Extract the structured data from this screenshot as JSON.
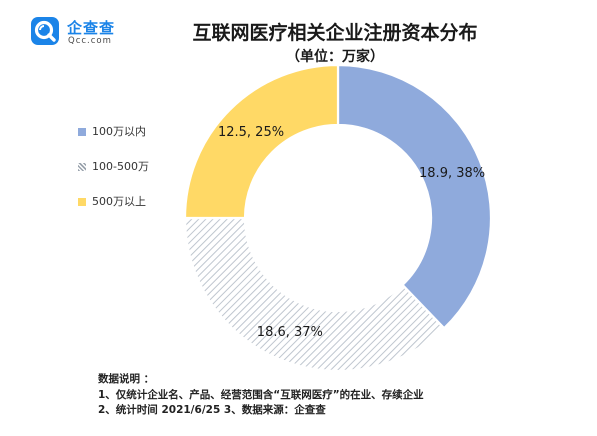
{
  "logo": {
    "name": "企查查",
    "domain": "Qcc.com"
  },
  "chart_data": {
    "type": "pie",
    "title": "互联网医疗相关企业注册资本分布",
    "subtitle": "（单位：万家）",
    "categories": [
      "100万以内",
      "100-500万",
      "500万以上"
    ],
    "values": [
      18.9,
      18.6,
      12.5
    ],
    "percents": [
      38,
      37,
      25
    ],
    "data_labels": [
      "18.9, 38%",
      "18.6, 37%",
      "12.5, 25%"
    ],
    "colors": [
      "#8faadc",
      "#d6dce4",
      "#ffd966"
    ],
    "patterns": [
      "solid",
      "diagonal-hatch",
      "solid"
    ],
    "hole": true,
    "legend_position": "left"
  },
  "notes": {
    "heading": "数据说明 ：",
    "lines": [
      "1、仅统计企业名、产品、经营范围含“互联网医疗”的在业、存续企业",
      "2、统计时间  2021/6/25     3、数据来源：企查查"
    ]
  }
}
